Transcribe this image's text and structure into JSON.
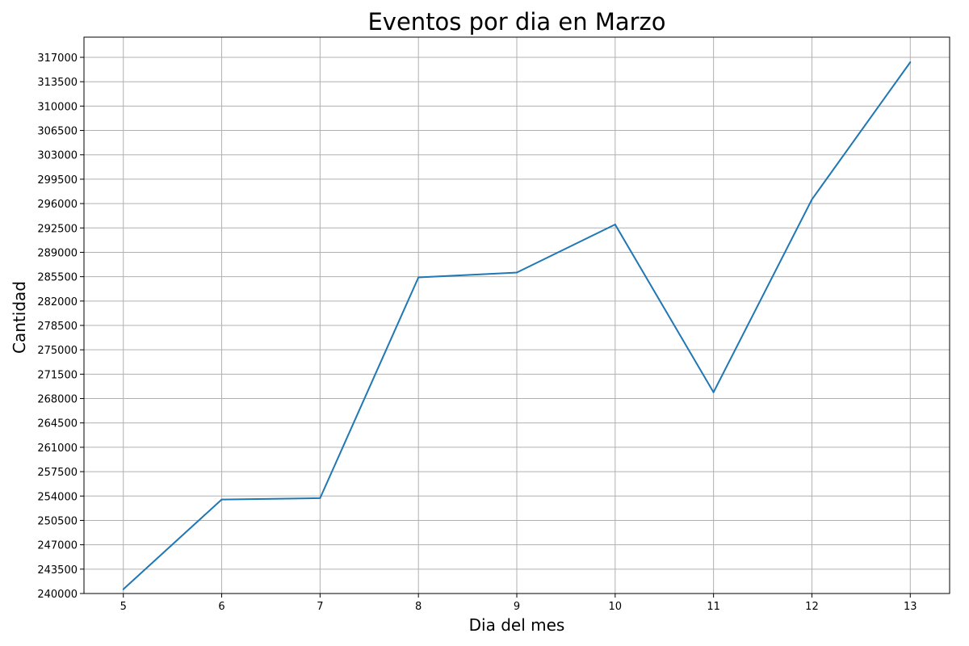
{
  "chart_data": {
    "type": "line",
    "title": "Eventos por dia en Marzo",
    "xlabel": "Dia del mes",
    "ylabel": "Cantidad",
    "x": [
      5,
      6,
      7,
      8,
      9,
      10,
      11,
      12,
      13
    ],
    "series": [
      {
        "values": [
          240600,
          253500,
          253700,
          285400,
          286100,
          293000,
          268900,
          296600,
          316300
        ],
        "color": "#1f77b4"
      }
    ],
    "xticks": [
      5,
      6,
      7,
      8,
      9,
      10,
      11,
      12,
      13
    ],
    "yticks": [
      240000,
      243500,
      247000,
      250500,
      254000,
      257500,
      261000,
      264500,
      268000,
      271500,
      275000,
      278500,
      282000,
      285500,
      289000,
      292500,
      296000,
      299500,
      303000,
      306500,
      310000,
      313500,
      317000
    ],
    "xlim": [
      4.6,
      13.4
    ],
    "ylim": [
      240000,
      319900
    ],
    "grid": true,
    "grid_color": "#b0b0b0"
  }
}
